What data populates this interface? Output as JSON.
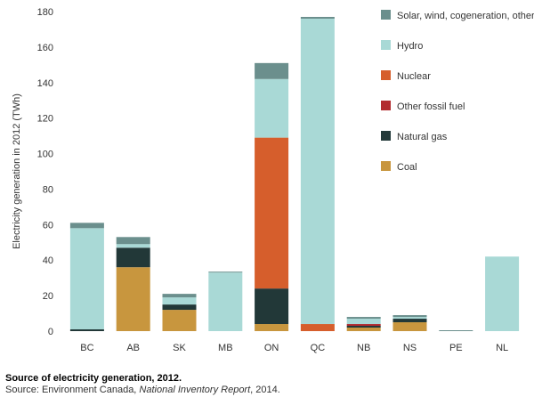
{
  "chart_data": {
    "type": "bar",
    "stacked": true,
    "categories": [
      "BC",
      "AB",
      "SK",
      "MB",
      "ON",
      "QC",
      "NB",
      "NS",
      "PE",
      "NL"
    ],
    "ylabel": "Electricity generation in 2012 (TWh)",
    "yticks": [
      0,
      20,
      40,
      60,
      80,
      100,
      120,
      140,
      160,
      180
    ],
    "ylim": [
      0,
      180
    ],
    "grid": false,
    "legend_position": "top-right",
    "series": [
      {
        "name": "Coal",
        "color": "#c8963e",
        "values": [
          0,
          36,
          12,
          0,
          4,
          0,
          2,
          5,
          0,
          0
        ]
      },
      {
        "name": "Natural gas",
        "color": "#223838",
        "values": [
          1,
          11,
          3,
          0,
          20,
          0,
          1,
          2,
          0,
          0
        ]
      },
      {
        "name": "Other fossil fuel",
        "color": "#b22a2e",
        "values": [
          0,
          0,
          0,
          0,
          0,
          0,
          1,
          0,
          0,
          0
        ]
      },
      {
        "name": "Nuclear",
        "color": "#d65e2c",
        "values": [
          0,
          0,
          0,
          0,
          85,
          4,
          0,
          0,
          0,
          0
        ]
      },
      {
        "name": "Hydro",
        "color": "#a9d9d6",
        "values": [
          57,
          2,
          4,
          33,
          33,
          172,
          3,
          1,
          0,
          42
        ]
      },
      {
        "name": "Solar, wind, cogeneration, other",
        "color": "#6b8f8d",
        "values": [
          3,
          4,
          2,
          0.5,
          9,
          1,
          1,
          1,
          0.5,
          0
        ]
      }
    ]
  },
  "caption": {
    "title": "Source of electricity generation, 2012.",
    "source_prefix": "Source: Environment Canada, ",
    "source_italic": "National Inventory Report",
    "source_suffix": ", 2014."
  }
}
